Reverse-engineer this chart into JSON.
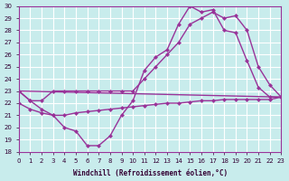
{
  "xlabel": "Windchill (Refroidissement éolien,°C)",
  "xlim": [
    0,
    23
  ],
  "ylim": [
    18,
    30
  ],
  "yticks": [
    18,
    19,
    20,
    21,
    22,
    23,
    24,
    25,
    26,
    27,
    28,
    29,
    30
  ],
  "xticks": [
    0,
    1,
    2,
    3,
    4,
    5,
    6,
    7,
    8,
    9,
    10,
    11,
    12,
    13,
    14,
    15,
    16,
    17,
    18,
    19,
    20,
    21,
    22,
    23
  ],
  "bg_color": "#c8ecec",
  "grid_color": "#ffffff",
  "line_color": "#993399",
  "line1_x": [
    0,
    1,
    2,
    3,
    4,
    5,
    6,
    7,
    8,
    9,
    10,
    11,
    12,
    13,
    14,
    15,
    16,
    17,
    18,
    19,
    20,
    21,
    22,
    23
  ],
  "line1_y": [
    23.0,
    22.2,
    21.5,
    21.0,
    20.0,
    19.7,
    18.5,
    18.5,
    19.3,
    21.0,
    22.2,
    24.7,
    25.8,
    26.4,
    28.5,
    30.0,
    29.5,
    29.7,
    28.0,
    27.8,
    25.5,
    23.3,
    22.5,
    22.5
  ],
  "line2_x": [
    0,
    1,
    2,
    3,
    4,
    5,
    6,
    7,
    8,
    9,
    10,
    11,
    12,
    13,
    14,
    15,
    16,
    17,
    18,
    19,
    20,
    21,
    22,
    23
  ],
  "line2_y": [
    23.0,
    22.2,
    22.2,
    23.0,
    23.0,
    23.0,
    23.0,
    23.0,
    23.0,
    23.0,
    23.0,
    24.0,
    25.0,
    26.0,
    27.0,
    28.5,
    29.0,
    29.5,
    29.0,
    29.2,
    28.0,
    25.0,
    23.5,
    22.5
  ],
  "line3_x": [
    0,
    23
  ],
  "line3_y": [
    23.0,
    22.5
  ],
  "line4_x": [
    0,
    1,
    2,
    3,
    4,
    5,
    6,
    7,
    8,
    9,
    10,
    11,
    12,
    13,
    14,
    15,
    16,
    17,
    18,
    19,
    20,
    21,
    22,
    23
  ],
  "line4_y": [
    22.0,
    21.5,
    21.2,
    21.0,
    21.0,
    21.2,
    21.3,
    21.4,
    21.5,
    21.6,
    21.7,
    21.8,
    21.9,
    22.0,
    22.0,
    22.1,
    22.2,
    22.2,
    22.3,
    22.3,
    22.3,
    22.3,
    22.3,
    22.5
  ]
}
